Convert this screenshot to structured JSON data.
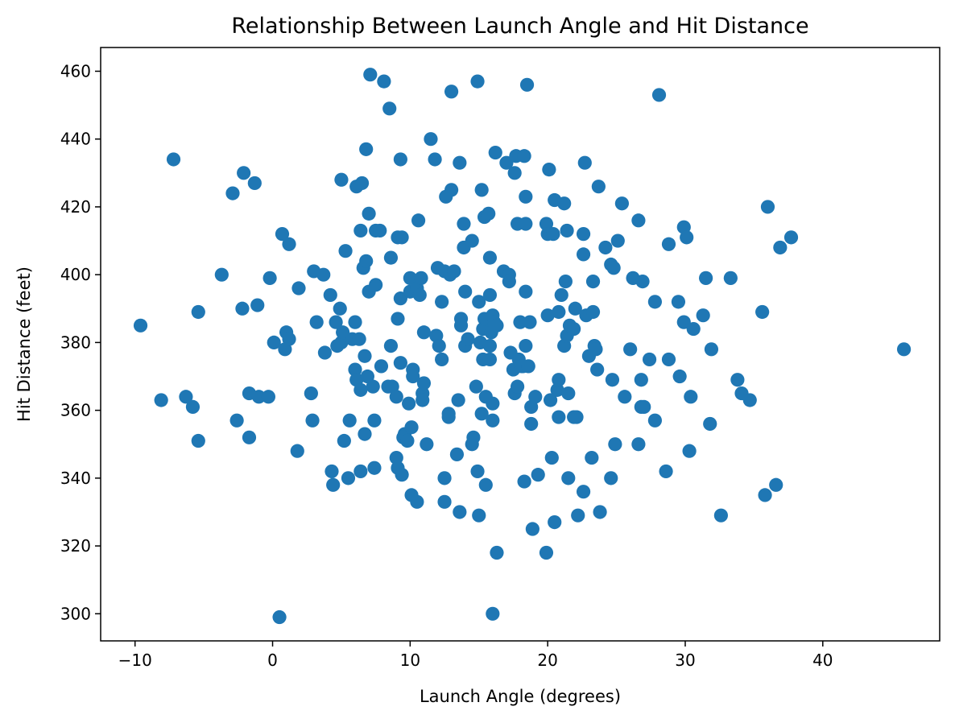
{
  "chart_data": {
    "type": "scatter",
    "title": "Relationship Between Launch Angle and Hit Distance",
    "xlabel": "Launch Angle (degrees)",
    "ylabel": "Hit Distance (feet)",
    "xlim": [
      -12.5,
      48.5
    ],
    "ylim": [
      292,
      467
    ],
    "xticks": [
      -10,
      0,
      10,
      20,
      30,
      40
    ],
    "yticks": [
      300,
      320,
      340,
      360,
      380,
      400,
      420,
      440,
      460
    ],
    "grid": false,
    "legend": "none",
    "marker_color": "#1f77b4",
    "points": [
      [
        -9.6,
        385
      ],
      [
        -8.1,
        363
      ],
      [
        -7.2,
        434
      ],
      [
        -6.3,
        364
      ],
      [
        -5.8,
        361
      ],
      [
        -5.4,
        389
      ],
      [
        -5.4,
        351
      ],
      [
        -3.7,
        400
      ],
      [
        -2.9,
        424
      ],
      [
        -2.6,
        357
      ],
      [
        -2.2,
        390
      ],
      [
        -2.1,
        430
      ],
      [
        -1.7,
        365
      ],
      [
        -1.7,
        352
      ],
      [
        -1.3,
        427
      ],
      [
        -1.1,
        391
      ],
      [
        -1.0,
        364
      ],
      [
        -0.3,
        364
      ],
      [
        -0.2,
        399
      ],
      [
        0.1,
        380
      ],
      [
        0.5,
        299
      ],
      [
        0.7,
        412
      ],
      [
        0.9,
        378
      ],
      [
        1.0,
        383
      ],
      [
        1.2,
        409
      ],
      [
        1.2,
        381
      ],
      [
        1.8,
        348
      ],
      [
        1.9,
        396
      ],
      [
        2.8,
        365
      ],
      [
        2.9,
        357
      ],
      [
        3.0,
        401
      ],
      [
        3.2,
        386
      ],
      [
        3.7,
        400
      ],
      [
        3.8,
        377
      ],
      [
        4.2,
        394
      ],
      [
        4.3,
        342
      ],
      [
        4.4,
        338
      ],
      [
        4.6,
        386
      ],
      [
        4.7,
        379
      ],
      [
        4.9,
        390
      ],
      [
        5.0,
        380
      ],
      [
        5.0,
        428
      ],
      [
        5.1,
        383
      ],
      [
        5.2,
        351
      ],
      [
        5.3,
        407
      ],
      [
        5.5,
        340
      ],
      [
        5.6,
        357
      ],
      [
        5.8,
        381
      ],
      [
        6.0,
        386
      ],
      [
        6.0,
        372
      ],
      [
        6.1,
        369
      ],
      [
        6.1,
        426
      ],
      [
        6.3,
        381
      ],
      [
        6.4,
        366
      ],
      [
        6.4,
        342
      ],
      [
        6.4,
        413
      ],
      [
        6.5,
        427
      ],
      [
        6.6,
        402
      ],
      [
        6.7,
        353
      ],
      [
        6.7,
        376
      ],
      [
        6.8,
        404
      ],
      [
        6.8,
        437
      ],
      [
        6.9,
        370
      ],
      [
        7.0,
        418
      ],
      [
        7.0,
        395
      ],
      [
        7.1,
        459
      ],
      [
        7.3,
        367
      ],
      [
        7.4,
        357
      ],
      [
        7.4,
        343
      ],
      [
        7.5,
        413
      ],
      [
        7.5,
        397
      ],
      [
        7.8,
        413
      ],
      [
        7.9,
        373
      ],
      [
        8.1,
        457
      ],
      [
        8.4,
        367
      ],
      [
        8.5,
        449
      ],
      [
        8.6,
        379
      ],
      [
        8.6,
        405
      ],
      [
        8.7,
        367
      ],
      [
        9.0,
        364
      ],
      [
        9.0,
        346
      ],
      [
        9.1,
        343
      ],
      [
        9.1,
        387
      ],
      [
        9.1,
        411
      ],
      [
        9.3,
        434
      ],
      [
        9.3,
        374
      ],
      [
        9.3,
        393
      ],
      [
        9.4,
        341
      ],
      [
        9.4,
        411
      ],
      [
        9.5,
        352
      ],
      [
        9.6,
        353
      ],
      [
        9.8,
        351
      ],
      [
        9.9,
        362
      ],
      [
        10.0,
        399
      ],
      [
        10.0,
        395
      ],
      [
        10.1,
        335
      ],
      [
        10.1,
        355
      ],
      [
        10.2,
        372
      ],
      [
        10.2,
        370
      ],
      [
        10.5,
        333
      ],
      [
        10.5,
        396
      ],
      [
        10.6,
        416
      ],
      [
        10.7,
        394
      ],
      [
        10.8,
        399
      ],
      [
        10.9,
        365
      ],
      [
        10.9,
        363
      ],
      [
        11.0,
        368
      ],
      [
        11.0,
        383
      ],
      [
        11.2,
        350
      ],
      [
        11.5,
        440
      ],
      [
        11.8,
        434
      ],
      [
        11.9,
        382
      ],
      [
        12.0,
        402
      ],
      [
        12.1,
        379
      ],
      [
        12.3,
        375
      ],
      [
        12.3,
        392
      ],
      [
        12.5,
        401
      ],
      [
        12.5,
        340
      ],
      [
        12.5,
        333
      ],
      [
        12.6,
        423
      ],
      [
        12.8,
        359
      ],
      [
        12.8,
        358
      ],
      [
        12.9,
        400
      ],
      [
        13.0,
        425
      ],
      [
        13.0,
        454
      ],
      [
        13.2,
        401
      ],
      [
        13.4,
        347
      ],
      [
        13.5,
        363
      ],
      [
        13.6,
        433
      ],
      [
        13.6,
        330
      ],
      [
        13.7,
        387
      ],
      [
        13.7,
        385
      ],
      [
        13.9,
        415
      ],
      [
        13.9,
        408
      ],
      [
        14.0,
        379
      ],
      [
        14.0,
        395
      ],
      [
        14.2,
        381
      ],
      [
        14.5,
        410
      ],
      [
        14.5,
        350
      ],
      [
        14.6,
        352
      ],
      [
        14.8,
        367
      ],
      [
        14.9,
        342
      ],
      [
        14.9,
        457
      ],
      [
        15.0,
        329
      ],
      [
        15.0,
        392
      ],
      [
        15.1,
        380
      ],
      [
        15.2,
        359
      ],
      [
        15.2,
        425
      ],
      [
        15.3,
        375
      ],
      [
        15.3,
        384
      ],
      [
        15.4,
        417
      ],
      [
        15.4,
        387
      ],
      [
        15.5,
        338
      ],
      [
        15.5,
        364
      ],
      [
        15.7,
        418
      ],
      [
        15.8,
        379
      ],
      [
        15.8,
        375
      ],
      [
        15.8,
        405
      ],
      [
        15.8,
        394
      ],
      [
        15.9,
        383
      ],
      [
        16.0,
        388
      ],
      [
        16.0,
        362
      ],
      [
        16.0,
        300
      ],
      [
        16.0,
        357
      ],
      [
        16.1,
        386
      ],
      [
        16.2,
        436
      ],
      [
        16.3,
        385
      ],
      [
        16.3,
        318
      ],
      [
        16.8,
        401
      ],
      [
        17.0,
        433
      ],
      [
        17.2,
        400
      ],
      [
        17.2,
        398
      ],
      [
        17.3,
        377
      ],
      [
        17.5,
        372
      ],
      [
        17.6,
        365
      ],
      [
        17.6,
        430
      ],
      [
        17.7,
        435
      ],
      [
        17.8,
        415
      ],
      [
        17.8,
        367
      ],
      [
        17.9,
        375
      ],
      [
        18.0,
        386
      ],
      [
        18.1,
        373
      ],
      [
        18.2,
        373
      ],
      [
        18.3,
        435
      ],
      [
        18.3,
        339
      ],
      [
        18.4,
        395
      ],
      [
        18.4,
        423
      ],
      [
        18.4,
        415
      ],
      [
        18.4,
        379
      ],
      [
        18.5,
        456
      ],
      [
        18.6,
        373
      ],
      [
        18.7,
        386
      ],
      [
        18.8,
        361
      ],
      [
        18.8,
        356
      ],
      [
        18.9,
        325
      ],
      [
        19.1,
        364
      ],
      [
        19.3,
        341
      ],
      [
        19.9,
        318
      ],
      [
        19.9,
        415
      ],
      [
        20.0,
        412
      ],
      [
        20.0,
        388
      ],
      [
        20.1,
        431
      ],
      [
        20.2,
        363
      ],
      [
        20.3,
        346
      ],
      [
        20.4,
        412
      ],
      [
        20.5,
        327
      ],
      [
        20.5,
        422
      ],
      [
        20.7,
        366
      ],
      [
        20.8,
        369
      ],
      [
        20.8,
        389
      ],
      [
        20.8,
        358
      ],
      [
        21.0,
        394
      ],
      [
        21.2,
        379
      ],
      [
        21.2,
        421
      ],
      [
        21.3,
        398
      ],
      [
        21.4,
        382
      ],
      [
        21.4,
        413
      ],
      [
        21.5,
        340
      ],
      [
        21.5,
        365
      ],
      [
        21.6,
        385
      ],
      [
        21.9,
        358
      ],
      [
        21.9,
        384
      ],
      [
        22.0,
        390
      ],
      [
        22.1,
        358
      ],
      [
        22.2,
        329
      ],
      [
        22.6,
        412
      ],
      [
        22.6,
        406
      ],
      [
        22.6,
        336
      ],
      [
        22.7,
        433
      ],
      [
        22.8,
        388
      ],
      [
        23.0,
        376
      ],
      [
        23.2,
        346
      ],
      [
        23.3,
        389
      ],
      [
        23.3,
        398
      ],
      [
        23.4,
        379
      ],
      [
        23.5,
        378
      ],
      [
        23.6,
        372
      ],
      [
        23.7,
        426
      ],
      [
        23.8,
        330
      ],
      [
        24.2,
        408
      ],
      [
        24.6,
        403
      ],
      [
        24.6,
        340
      ],
      [
        24.7,
        369
      ],
      [
        24.8,
        402
      ],
      [
        24.9,
        350
      ],
      [
        25.1,
        410
      ],
      [
        25.4,
        421
      ],
      [
        25.6,
        364
      ],
      [
        26.0,
        378
      ],
      [
        26.2,
        399
      ],
      [
        26.6,
        416
      ],
      [
        26.6,
        350
      ],
      [
        26.8,
        361
      ],
      [
        26.8,
        369
      ],
      [
        26.9,
        398
      ],
      [
        27.0,
        361
      ],
      [
        27.4,
        375
      ],
      [
        27.8,
        392
      ],
      [
        27.8,
        357
      ],
      [
        28.1,
        453
      ],
      [
        28.6,
        342
      ],
      [
        28.8,
        375
      ],
      [
        28.8,
        409
      ],
      [
        29.5,
        392
      ],
      [
        29.6,
        370
      ],
      [
        29.9,
        386
      ],
      [
        29.9,
        414
      ],
      [
        30.1,
        411
      ],
      [
        30.3,
        348
      ],
      [
        30.4,
        364
      ],
      [
        30.6,
        384
      ],
      [
        31.3,
        388
      ],
      [
        31.5,
        399
      ],
      [
        31.8,
        356
      ],
      [
        31.9,
        378
      ],
      [
        32.6,
        329
      ],
      [
        33.3,
        399
      ],
      [
        33.8,
        369
      ],
      [
        34.1,
        365
      ],
      [
        34.7,
        363
      ],
      [
        35.6,
        389
      ],
      [
        35.8,
        335
      ],
      [
        36.0,
        420
      ],
      [
        36.6,
        338
      ],
      [
        36.9,
        408
      ],
      [
        37.7,
        411
      ],
      [
        45.9,
        378
      ]
    ]
  }
}
